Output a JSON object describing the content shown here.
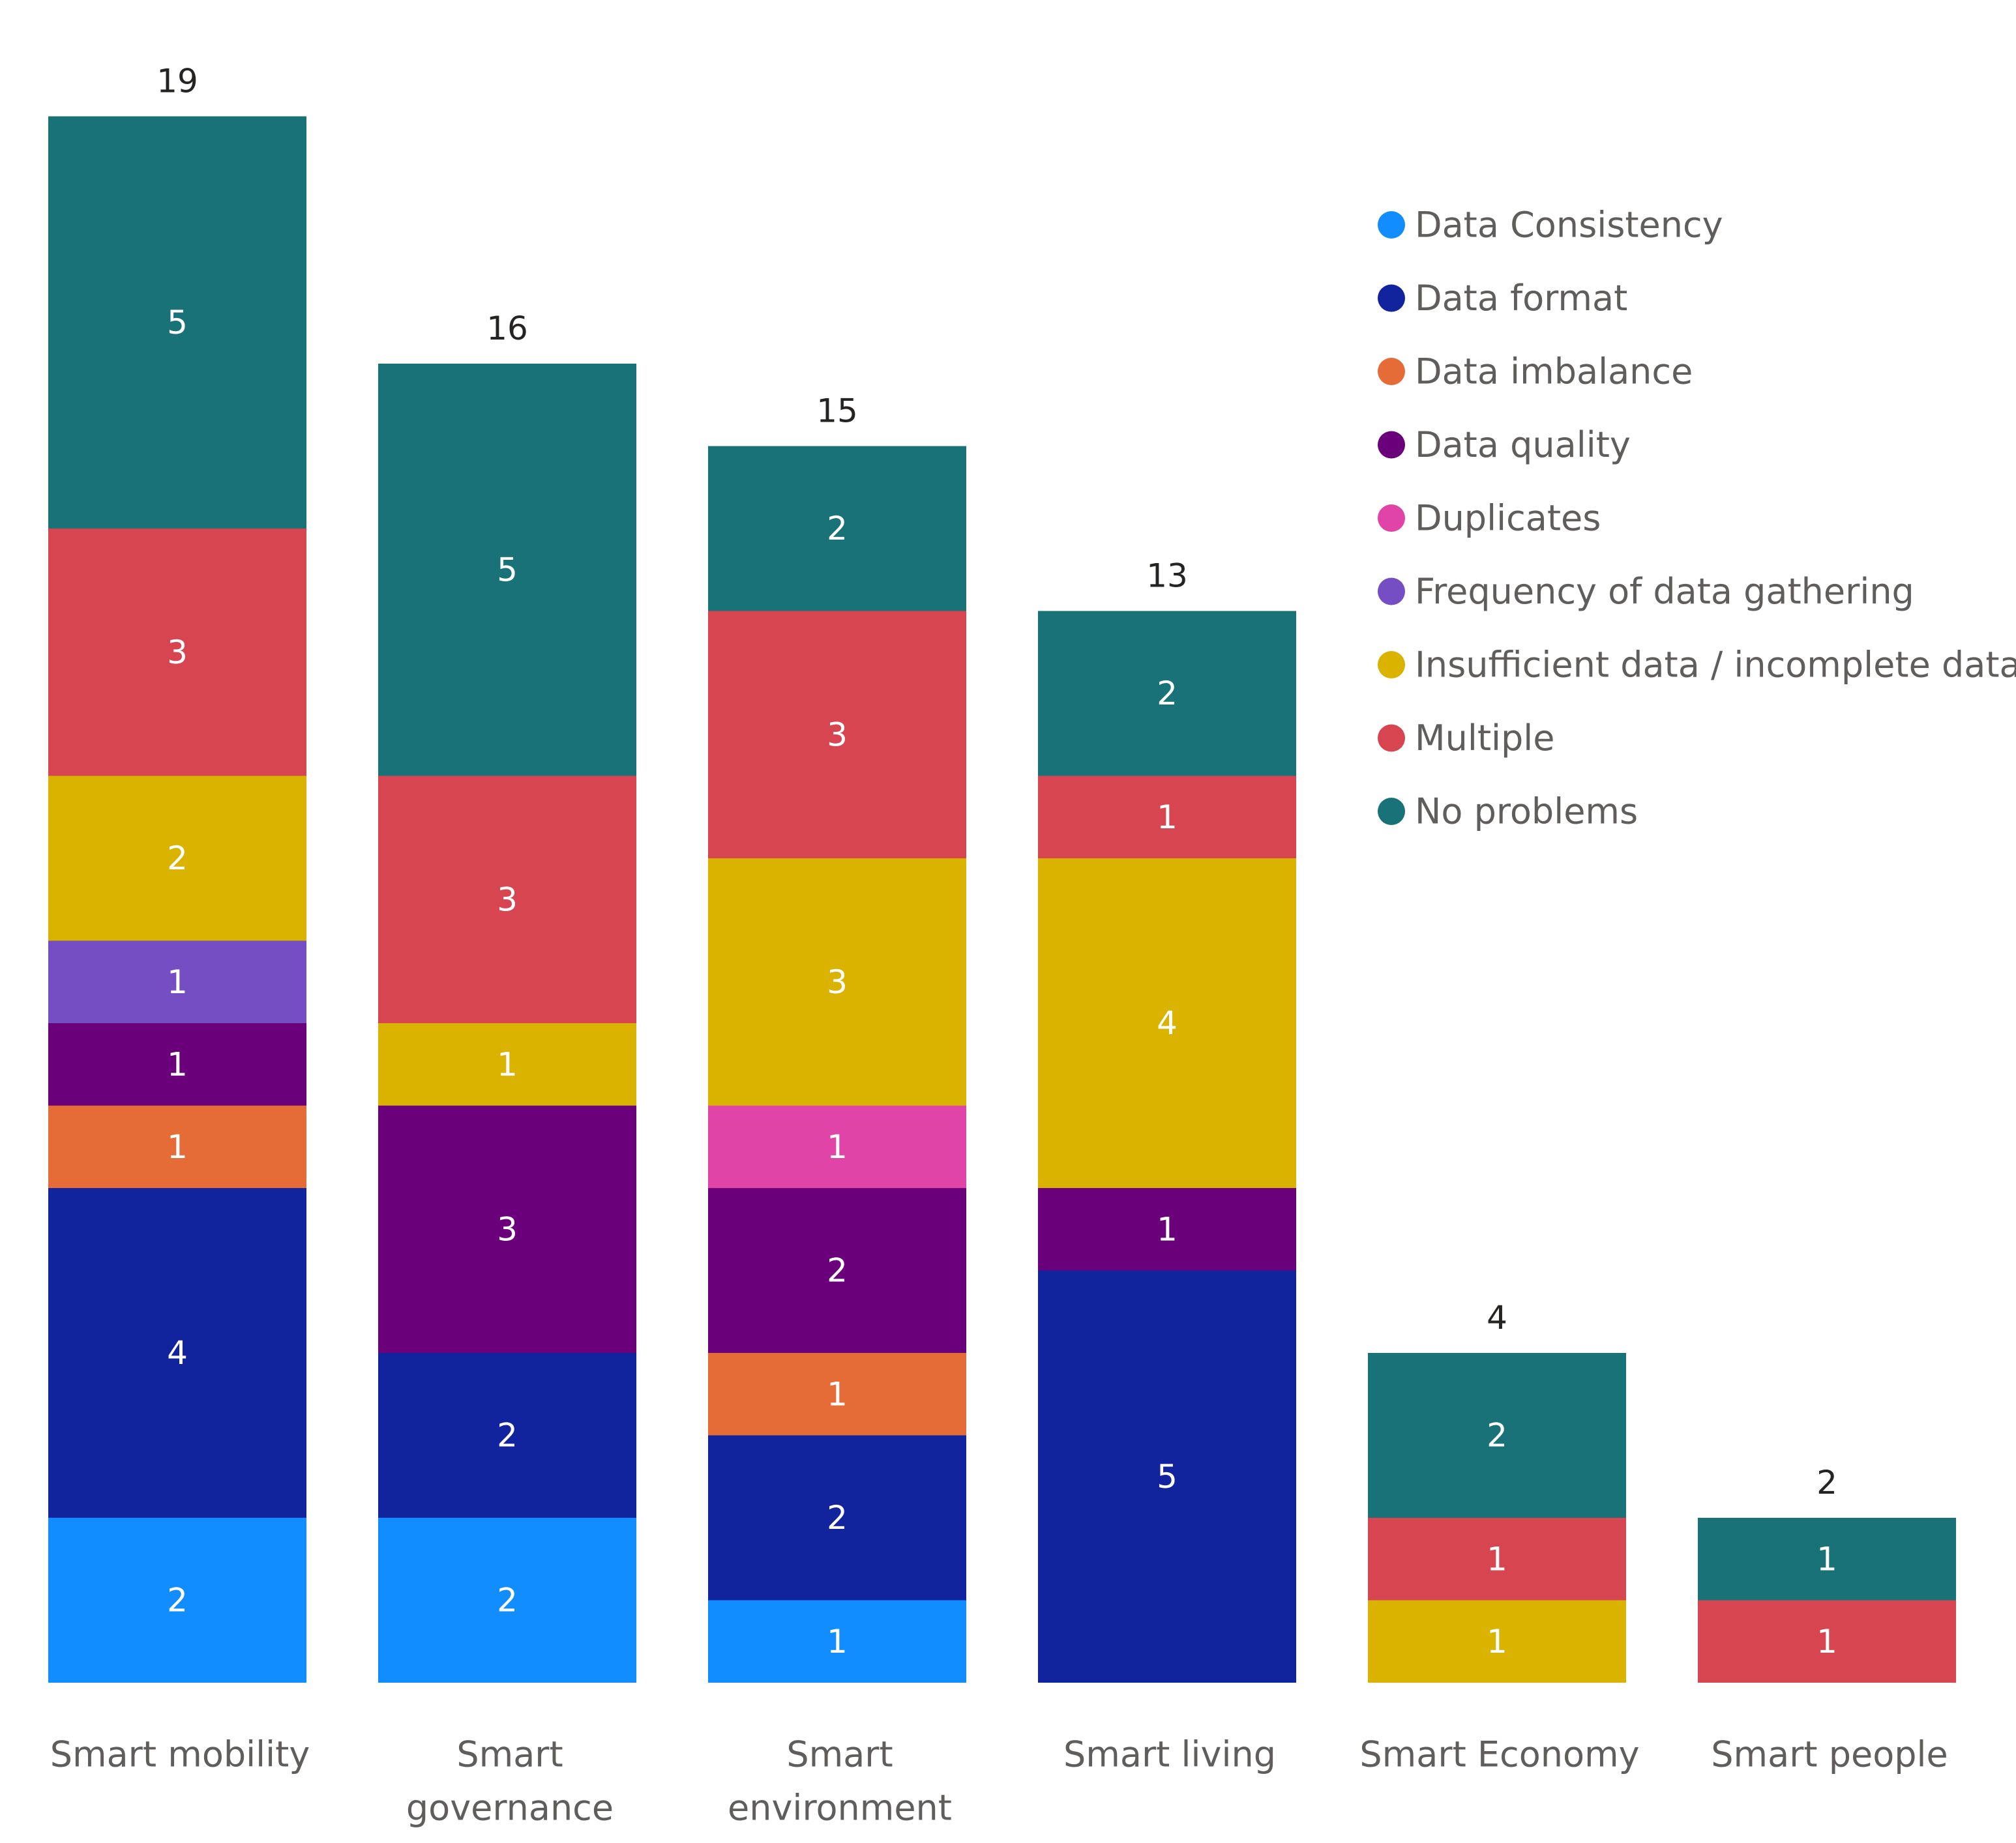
{
  "chart_data": {
    "type": "bar",
    "stacked": true,
    "title": "",
    "xlabel": "",
    "ylabel": "",
    "ylim": [
      0,
      19
    ],
    "legend_position": "right",
    "categories": [
      "Smart mobility",
      "Smart governance",
      "Smart environment",
      "Smart living",
      "Smart Economy",
      "Smart people"
    ],
    "category_label_lines": [
      [
        "Smart mobility"
      ],
      [
        "Smart",
        "governance"
      ],
      [
        "Smart",
        "environment"
      ],
      [
        "Smart living"
      ],
      [
        "Smart Economy"
      ],
      [
        "Smart people"
      ]
    ],
    "totals": [
      19,
      16,
      15,
      13,
      4,
      2
    ],
    "series": [
      {
        "name": "Data Consistency",
        "color": "#118DFF",
        "values": [
          2,
          2,
          1,
          0,
          0,
          0
        ]
      },
      {
        "name": "Data format",
        "color": "#12239E",
        "values": [
          4,
          2,
          2,
          5,
          0,
          0
        ]
      },
      {
        "name": "Data imbalance",
        "color": "#E66C37",
        "values": [
          1,
          0,
          1,
          0,
          0,
          0
        ]
      },
      {
        "name": "Data quality",
        "color": "#6B007B",
        "values": [
          1,
          3,
          2,
          1,
          0,
          0
        ]
      },
      {
        "name": "Duplicates",
        "color": "#E044A7",
        "values": [
          0,
          0,
          1,
          0,
          0,
          0
        ]
      },
      {
        "name": "Frequency of data gathering",
        "color": "#744EC2",
        "values": [
          1,
          0,
          0,
          0,
          0,
          0
        ]
      },
      {
        "name": "Insufficient data / incomplete data",
        "color": "#D9B300",
        "values": [
          2,
          1,
          3,
          4,
          1,
          0
        ]
      },
      {
        "name": "Multiple",
        "color": "#D64550",
        "values": [
          3,
          3,
          3,
          1,
          1,
          1
        ]
      },
      {
        "name": "No problems",
        "color": "#197278",
        "values": [
          5,
          5,
          2,
          2,
          2,
          1
        ]
      }
    ]
  }
}
